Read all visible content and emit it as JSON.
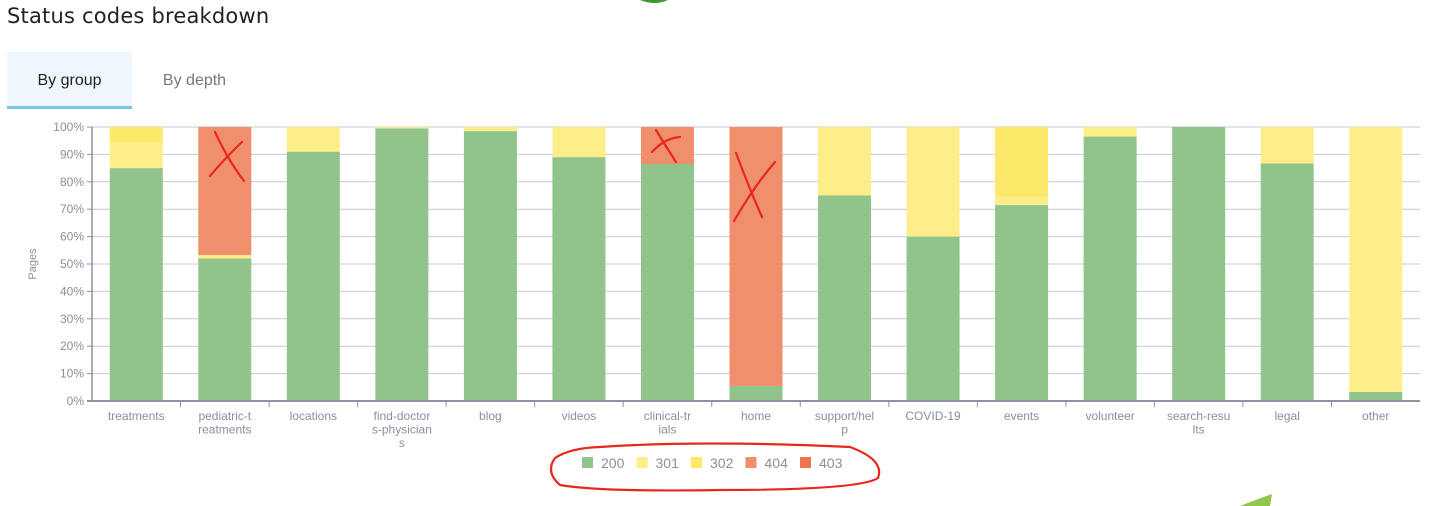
{
  "header": {
    "title": "Status codes breakdown"
  },
  "tabs": [
    {
      "label": "By group",
      "active": true
    },
    {
      "label": "By depth",
      "active": false
    }
  ],
  "chart_data": {
    "type": "bar",
    "stacked": true,
    "normalized": true,
    "ylabel": "Pages",
    "xlabel": "",
    "ylim": [
      0,
      100
    ],
    "yticks": [
      "0%",
      "10%",
      "20%",
      "30%",
      "40%",
      "50%",
      "60%",
      "70%",
      "80%",
      "90%",
      "100%"
    ],
    "grid": true,
    "legend_position": "bottom",
    "categories": [
      "treatments",
      "pediatric-treatments",
      "locations",
      "find-doctors-physicians",
      "blog",
      "videos",
      "clinical-trials",
      "home",
      "support/help",
      "COVID-19",
      "events",
      "volunteer",
      "search-results",
      "legal",
      "other"
    ],
    "series": [
      {
        "name": "200",
        "color": "#90c48b",
        "values": [
          85,
          52,
          91,
          99.5,
          98.5,
          89,
          86.5,
          5.5,
          75,
          60,
          71.5,
          96.5,
          100,
          86.7,
          3.3
        ]
      },
      {
        "name": "301",
        "color": "#fdee8a",
        "values": [
          9.5,
          1.3,
          9,
          0.5,
          1.5,
          11,
          0,
          0,
          25,
          40,
          3,
          3.5,
          0,
          13.3,
          96.7
        ]
      },
      {
        "name": "302",
        "color": "#fce96a",
        "values": [
          5.5,
          0,
          0,
          0,
          0,
          0,
          0,
          0,
          0,
          0,
          25.5,
          0,
          0,
          0,
          0
        ]
      },
      {
        "name": "404",
        "color": "#f08f6b",
        "values": [
          0,
          46.7,
          0,
          0,
          0,
          0,
          13.5,
          94.5,
          0,
          0,
          0,
          0,
          0,
          0,
          0
        ]
      },
      {
        "name": "403",
        "color": "#ed7550",
        "values": [
          0,
          0,
          0,
          0,
          0,
          0,
          0,
          0,
          0,
          0,
          0,
          0,
          0,
          0,
          0
        ]
      }
    ]
  }
}
